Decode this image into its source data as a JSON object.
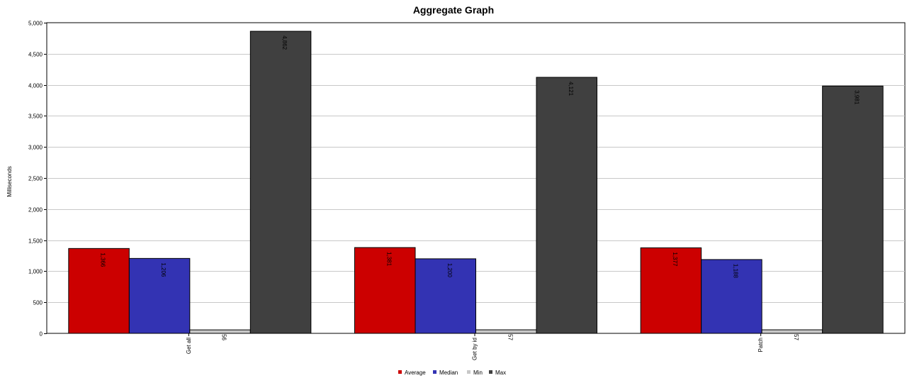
{
  "chart_data": {
    "type": "bar",
    "title": "Aggregate Graph",
    "xlabel": "",
    "ylabel": "Milliseconds",
    "ylim": [
      0,
      5000
    ],
    "yticks": [
      0,
      500,
      1000,
      1500,
      2000,
      2500,
      3000,
      3500,
      4000,
      4500,
      5000
    ],
    "ytick_labels": [
      "0",
      "500",
      "1,000",
      "1,500",
      "2,000",
      "2,500",
      "3,000",
      "3,500",
      "4,000",
      "4,500",
      "5,000"
    ],
    "categories": [
      "Get all",
      "Get by id",
      "Patch"
    ],
    "series": [
      {
        "name": "Average",
        "color": "#cc0000",
        "values": [
          1366,
          1381,
          1377
        ],
        "labels": [
          "1,366",
          "1,381",
          "1,377"
        ]
      },
      {
        "name": "Median",
        "color": "#3333b3",
        "values": [
          1206,
          1200,
          1188
        ],
        "labels": [
          "1,206",
          "1,200",
          "1,188"
        ]
      },
      {
        "name": "Min",
        "color": "#c8c8c8",
        "values": [
          56,
          57,
          57
        ],
        "labels": [
          "56",
          "57",
          "57"
        ]
      },
      {
        "name": "Max",
        "color": "#404040",
        "values": [
          4862,
          4121,
          3981
        ],
        "labels": [
          "4,862",
          "4,121",
          "3,981"
        ]
      }
    ],
    "grid": true,
    "legend": "bottom-center"
  }
}
